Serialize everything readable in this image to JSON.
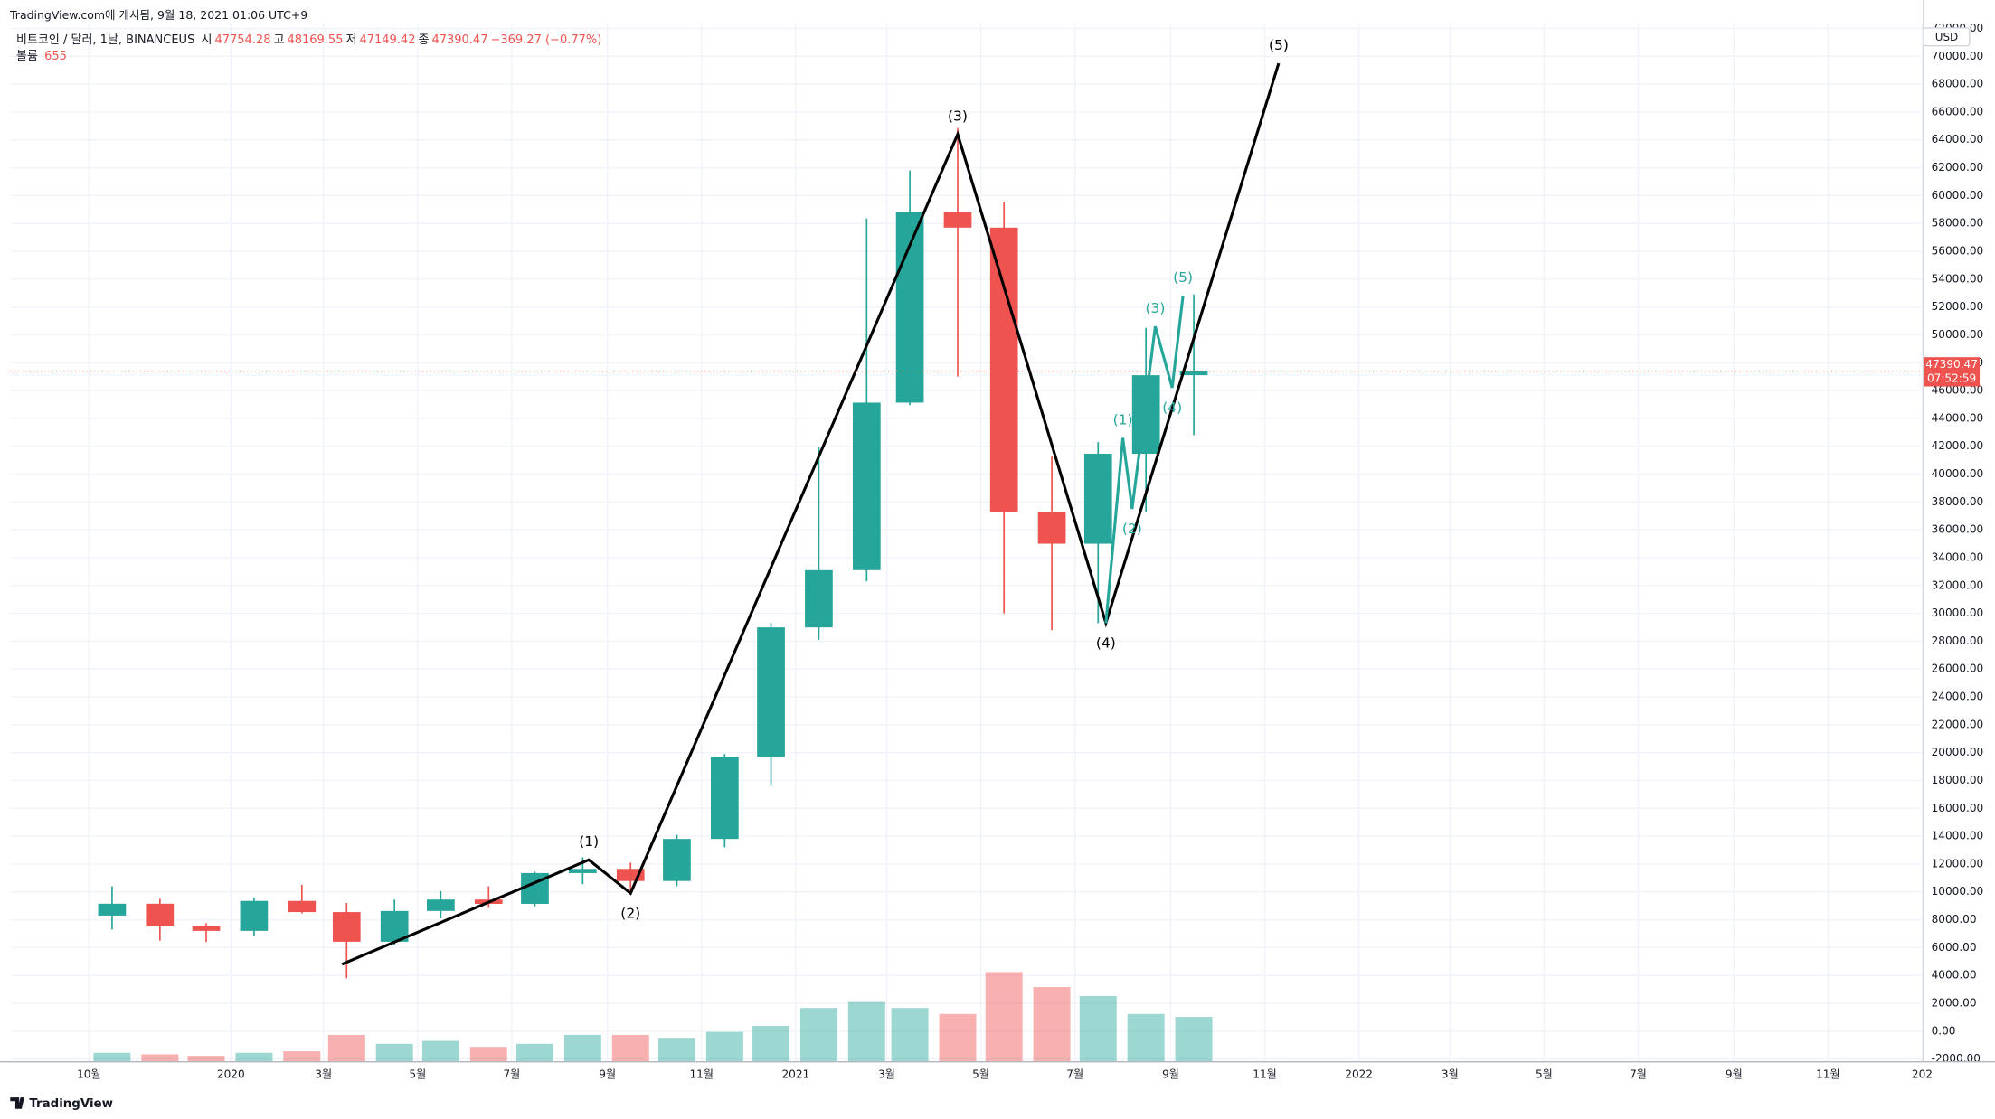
{
  "header": {
    "published": "TradingView.com에 게시됨, 9월 18, 2021 01:06 UTC+9",
    "symbol": "비트코인 / 달러, 1날, BINANCEUS",
    "ohlc": [
      {
        "label": "시",
        "value": 47754.28
      },
      {
        "label": "고",
        "value": 48169.55
      },
      {
        "label": "저",
        "value": 47149.42
      },
      {
        "label": "종",
        "value": 47390.47
      }
    ],
    "change": "−369.27 (−0.77%)",
    "volume_label": "볼륨",
    "volume_value": 655
  },
  "chart_data": {
    "type": "candlestick",
    "x": [
      "2019-10",
      "2019-11",
      "2019-12",
      "2020-01",
      "2020-02",
      "2020-03",
      "2020-04",
      "2020-05",
      "2020-06",
      "2020-07",
      "2020-08",
      "2020-09",
      "2020-10",
      "2020-11",
      "2020-12",
      "2021-01",
      "2021-02",
      "2021-03",
      "2021-04",
      "2021-05",
      "2021-06",
      "2021-07",
      "2021-08",
      "2021-09"
    ],
    "open": [
      8300,
      9150,
      7550,
      7200,
      9350,
      8550,
      6420,
      8630,
      9450,
      9140,
      11350,
      11650,
      10780,
      13800,
      19700,
      28990,
      33100,
      45130,
      58800,
      57700,
      37300,
      35000,
      41460,
      47100
    ],
    "high": [
      10400,
      9500,
      7750,
      9600,
      10500,
      9200,
      9450,
      10050,
      10400,
      11450,
      12480,
      12100,
      14100,
      19900,
      29300,
      41950,
      58350,
      61800,
      64850,
      59500,
      41300,
      42300,
      50500,
      52900
    ],
    "low": [
      7300,
      6500,
      6400,
      6850,
      8450,
      3800,
      6150,
      8100,
      8850,
      8950,
      10550,
      9850,
      10400,
      13200,
      17600,
      28100,
      32300,
      44950,
      47000,
      30000,
      28800,
      29300,
      37300,
      42800
    ],
    "close": [
      9150,
      7550,
      7200,
      9350,
      8550,
      6420,
      8630,
      9450,
      9140,
      11350,
      11650,
      10780,
      13800,
      19700,
      28990,
      33100,
      45130,
      58800,
      57700,
      37300,
      35000,
      41460,
      47100,
      47390.47
    ],
    "volume": [
      300,
      250,
      200,
      300,
      350,
      900,
      600,
      700,
      500,
      600,
      900,
      900,
      800,
      1000,
      1200,
      1800,
      2000,
      1800,
      1600,
      3000,
      2500,
      2200,
      1600,
      1500
    ],
    "vlim": [
      0,
      10000
    ],
    "up_color": "#26a69a",
    "down_color": "#ef5350",
    "xlim": [
      "2019-08-11",
      "2023-01-02"
    ],
    "xticks": [
      {
        "value": "2019-10",
        "label": "10월"
      },
      {
        "value": "2020-01",
        "label": "2020"
      },
      {
        "value": "2020-03",
        "label": "3월"
      },
      {
        "value": "2020-05",
        "label": "5월"
      },
      {
        "value": "2020-07",
        "label": "7월"
      },
      {
        "value": "2020-09",
        "label": "9월"
      },
      {
        "value": "2020-11",
        "label": "11월"
      },
      {
        "value": "2021-01",
        "label": "2021"
      },
      {
        "value": "2021-03",
        "label": "3월"
      },
      {
        "value": "2021-05",
        "label": "5월"
      },
      {
        "value": "2021-07",
        "label": "7월"
      },
      {
        "value": "2021-09",
        "label": "9월"
      },
      {
        "value": "2021-11",
        "label": "11월"
      },
      {
        "value": "2022-01",
        "label": "2022"
      },
      {
        "value": "2022-03",
        "label": "3월"
      },
      {
        "value": "2022-05",
        "label": "5월"
      },
      {
        "value": "2022-07",
        "label": "7월"
      },
      {
        "value": "2022-09",
        "label": "9월"
      },
      {
        "value": "2022-11",
        "label": "11월"
      },
      {
        "value": "2023-01",
        "label": "202"
      }
    ],
    "ylim": [
      -2200,
      72400
    ],
    "yticks": [
      {
        "value": -2000,
        "label": "-2000.00"
      },
      {
        "value": 0,
        "label": "0.00"
      },
      {
        "value": 2000,
        "label": "2000.00"
      },
      {
        "value": 4000,
        "label": "4000.00"
      },
      {
        "value": 6000,
        "label": "6000.00"
      },
      {
        "value": 8000,
        "label": "8000.00"
      },
      {
        "value": 10000,
        "label": "10000.00"
      },
      {
        "value": 12000,
        "label": "12000.00"
      },
      {
        "value": 14000,
        "label": "14000.00"
      },
      {
        "value": 16000,
        "label": "16000.00"
      },
      {
        "value": 18000,
        "label": "18000.00"
      },
      {
        "value": 20000,
        "label": "20000.00"
      },
      {
        "value": 22000,
        "label": "22000.00"
      },
      {
        "value": 24000,
        "label": "24000.00"
      },
      {
        "value": 26000,
        "label": "26000.00"
      },
      {
        "value": 28000,
        "label": "28000.00"
      },
      {
        "value": 30000,
        "label": "30000.00"
      },
      {
        "value": 32000,
        "label": "32000.00"
      },
      {
        "value": 34000,
        "label": "34000.00"
      },
      {
        "value": 36000,
        "label": "36000.00"
      },
      {
        "value": 38000,
        "label": "38000.00"
      },
      {
        "value": 40000,
        "label": "40000.00"
      },
      {
        "value": 42000,
        "label": "42000.00"
      },
      {
        "value": 44000,
        "label": "44000.00"
      },
      {
        "value": 46000,
        "label": "46000.00"
      },
      {
        "value": 48000,
        "label": "48000.00"
      },
      {
        "value": 50000,
        "label": "50000.00"
      },
      {
        "value": 52000,
        "label": "52000.00"
      },
      {
        "value": 54000,
        "label": "54000.00"
      },
      {
        "value": 56000,
        "label": "56000.00"
      },
      {
        "value": 58000,
        "label": "58000.00"
      },
      {
        "value": 60000,
        "label": "60000.00"
      },
      {
        "value": 62000,
        "label": "62000.00"
      },
      {
        "value": 64000,
        "label": "64000.00"
      },
      {
        "value": 66000,
        "label": "66000.00"
      },
      {
        "value": 68000,
        "label": "68000.00"
      },
      {
        "value": 70000,
        "label": "70000.00"
      },
      {
        "value": 72000,
        "label": "72000.00"
      }
    ],
    "grid": true,
    "currency": "USD",
    "last_price": {
      "value": 47390.47,
      "label": "47390.47"
    },
    "countdown": "07:52:59",
    "waves": [
      {
        "color": "#000000",
        "points": [
          {
            "x": "2020-03-13",
            "y": 4800
          },
          {
            "x": "2020-08-20",
            "y": 12300,
            "label": "(1)"
          },
          {
            "x": "2020-09-16",
            "y": 9900,
            "label": "(2)"
          },
          {
            "x": "2021-04-16",
            "y": 64400,
            "label": "(3)"
          },
          {
            "x": "2021-07-21",
            "y": 29300,
            "label": "(4)"
          },
          {
            "x": "2021-11-10",
            "y": 69500,
            "label": "(5)"
          }
        ]
      },
      {
        "color": "#26a69a",
        "points": [
          {
            "x": "2021-07-21",
            "y": 29300
          },
          {
            "x": "2021-08-01",
            "y": 42600,
            "label": "(1)"
          },
          {
            "x": "2021-08-07",
            "y": 37500,
            "label": "(2)"
          },
          {
            "x": "2021-08-22",
            "y": 50600,
            "label": "(3)"
          },
          {
            "x": "2021-09-02",
            "y": 46200,
            "label": "(4)"
          },
          {
            "x": "2021-09-09",
            "y": 52800,
            "label": "(5)"
          }
        ]
      }
    ]
  },
  "footer": {
    "logo": "TradingView"
  }
}
